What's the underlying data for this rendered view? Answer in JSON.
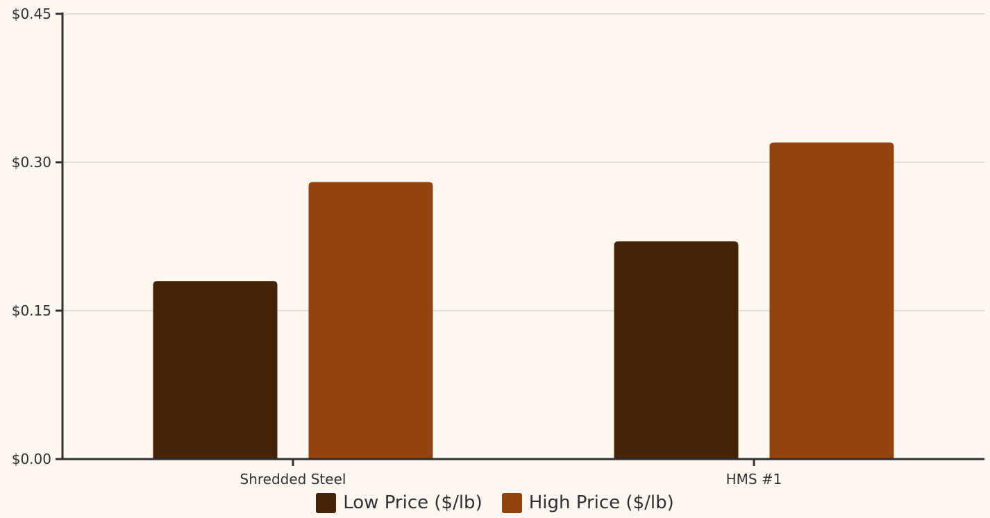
{
  "chart_data": {
    "type": "bar",
    "title": "",
    "xlabel": "",
    "ylabel": "",
    "categories": [
      "Shredded Steel",
      "HMS #1"
    ],
    "series": [
      {
        "name": "Low Price ($/lb)",
        "values": [
          0.18,
          0.22
        ],
        "color": "#462306"
      },
      {
        "name": "High Price ($/lb)",
        "values": [
          0.28,
          0.32
        ],
        "color": "#93430d"
      }
    ],
    "ylim": [
      0,
      0.45
    ],
    "yticks": [
      0,
      0.15,
      0.3,
      0.45
    ],
    "ytick_labels": [
      "$0.00",
      "$0.15",
      "$0.30",
      "$0.45"
    ],
    "grid": true,
    "legend": "bottom-center",
    "colors": {
      "background": "#fef7ef",
      "axis": "#2f2f35",
      "grid": "#d9d6d1"
    }
  }
}
